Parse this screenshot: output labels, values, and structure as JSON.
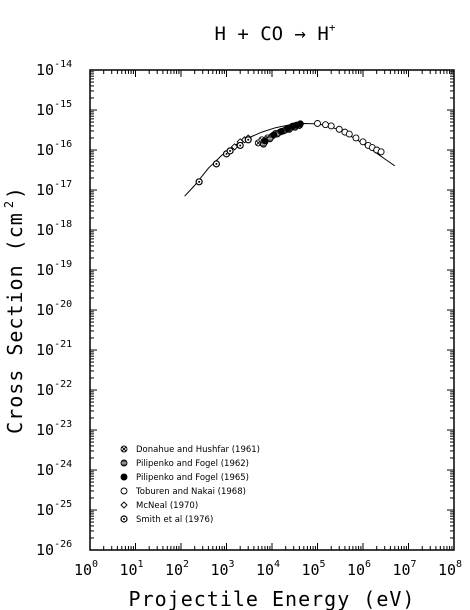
{
  "chart_data": {
    "type": "scatter",
    "title": "H + CO → H",
    "title_superscript": "+",
    "xlabel": "Projectile Energy (eV)",
    "ylabel": "Cross Section (cm )",
    "ylabel_superscript": "2",
    "x_scale": "log",
    "y_scale": "log",
    "xlim": [
      1,
      100000000
    ],
    "ylim": [
      1e-26,
      1e-14
    ],
    "x_tick_labels": [
      {
        "base": "10",
        "exp": "0"
      },
      {
        "base": "10",
        "exp": "1"
      },
      {
        "base": "10",
        "exp": "2"
      },
      {
        "base": "10",
        "exp": "3"
      },
      {
        "base": "10",
        "exp": "4"
      },
      {
        "base": "10",
        "exp": "5"
      },
      {
        "base": "10",
        "exp": "6"
      },
      {
        "base": "10",
        "exp": "7"
      },
      {
        "base": "10",
        "exp": "8"
      }
    ],
    "y_tick_labels": [
      {
        "base": "10",
        "exp": "-26"
      },
      {
        "base": "10",
        "exp": "-25"
      },
      {
        "base": "10",
        "exp": "-24"
      },
      {
        "base": "10",
        "exp": "-23"
      },
      {
        "base": "10",
        "exp": "-22"
      },
      {
        "base": "10",
        "exp": "-21"
      },
      {
        "base": "10",
        "exp": "-20"
      },
      {
        "base": "10",
        "exp": "-19"
      },
      {
        "base": "10",
        "exp": "-18"
      },
      {
        "base": "10",
        "exp": "-17"
      },
      {
        "base": "10",
        "exp": "-16"
      },
      {
        "base": "10",
        "exp": "-15"
      },
      {
        "base": "10",
        "exp": "-14"
      }
    ],
    "grid": false,
    "legend_position": "bottom-left",
    "fit_curve": {
      "x": [
        120,
        200,
        400,
        800,
        1500,
        3000,
        6000,
        12000,
        25000,
        50000,
        100000,
        200000,
        400000,
        800000,
        1500000,
        3000000,
        5000000
      ],
      "y": [
        7e-18,
        1.3e-17,
        3.5e-17,
        7.5e-17,
        1.3e-16,
        2e-16,
        2.8e-16,
        3.6e-16,
        4.3e-16,
        4.6e-16,
        4.5e-16,
        3.8e-16,
        2.7e-16,
        1.7e-16,
        1.05e-16,
        6e-17,
        4e-17
      ]
    },
    "series": [
      {
        "name": "Donahue and Hushfar (1961)",
        "marker": "circle-x",
        "points": [
          [
            5000,
            1.5e-16
          ],
          [
            6000,
            1.8e-16
          ],
          [
            7000,
            1.6e-16
          ],
          [
            8000,
            2e-16
          ],
          [
            10000,
            2.2e-16
          ],
          [
            12000,
            2.6e-16
          ],
          [
            15000,
            2.8e-16
          ],
          [
            20000,
            3.2e-16
          ],
          [
            25000,
            3.5e-16
          ],
          [
            30000,
            4e-16
          ]
        ]
      },
      {
        "name": "Pilipenko and  Fogel (1962)",
        "marker": "circle-hatched",
        "points": [
          [
            6500,
            1.4e-16
          ],
          [
            9000,
            1.9e-16
          ],
          [
            13000,
            2.5e-16
          ],
          [
            18000,
            3e-16
          ],
          [
            24000,
            3.3e-16
          ],
          [
            32000,
            3.7e-16
          ],
          [
            40000,
            4.1e-16
          ]
        ]
      },
      {
        "name": "Pilipenko and Fogel (1965)",
        "marker": "circle-filled",
        "points": [
          [
            7000,
            1.7e-16
          ],
          [
            11000,
            2.4e-16
          ],
          [
            16000,
            2.9e-16
          ],
          [
            22000,
            3.4e-16
          ],
          [
            28000,
            3.9e-16
          ],
          [
            35000,
            4.2e-16
          ],
          [
            42000,
            4.5e-16
          ]
        ]
      },
      {
        "name": "Toburen and Nakai (1968)",
        "marker": "circle-open",
        "points": [
          [
            100000,
            4.6e-16
          ],
          [
            150000,
            4.3e-16
          ],
          [
            200000,
            4e-16
          ],
          [
            300000,
            3.3e-16
          ],
          [
            400000,
            2.8e-16
          ],
          [
            500000,
            2.5e-16
          ],
          [
            700000,
            2e-16
          ],
          [
            1000000,
            1.6e-16
          ],
          [
            1300000,
            1.3e-16
          ],
          [
            1600000,
            1.15e-16
          ],
          [
            2000000,
            1e-16
          ],
          [
            2500000,
            9e-17
          ]
        ]
      },
      {
        "name": "McNeal (1970)",
        "marker": "diamond",
        "points": [
          [
            1500,
            1.2e-16
          ],
          [
            2000,
            1.6e-16
          ],
          [
            2500,
            1.8e-16
          ],
          [
            3000,
            2e-16
          ]
        ]
      },
      {
        "name": "Smith et al (1976)",
        "marker": "circle-dot",
        "points": [
          [
            250,
            1.6e-17
          ],
          [
            600,
            4.5e-17
          ],
          [
            1000,
            8e-17
          ],
          [
            1200,
            9.5e-17
          ],
          [
            2000,
            1.3e-16
          ],
          [
            3000,
            1.8e-16
          ]
        ]
      }
    ]
  }
}
